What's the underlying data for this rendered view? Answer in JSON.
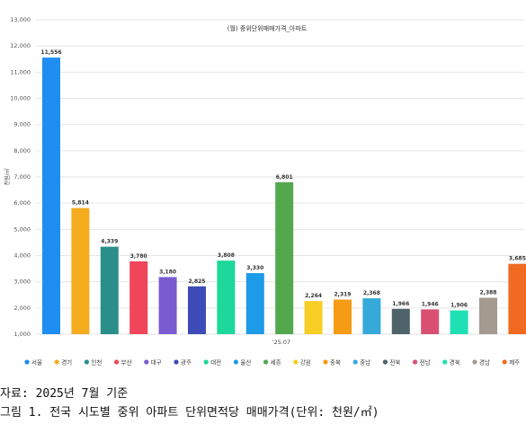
{
  "chart_data": {
    "type": "bar",
    "title": "(월) 중위단위매매가격_아파트",
    "ylabel": "천원/㎡",
    "ylim": [
      1000,
      13000
    ],
    "yticks": [
      1000,
      2000,
      3000,
      4000,
      5000,
      6000,
      7000,
      8000,
      9000,
      10000,
      11000,
      12000,
      13000
    ],
    "ytick_labels": [
      "1,000",
      "2,000",
      "3,000",
      "4,000",
      "5,000",
      "6,000",
      "7,000",
      "8,000",
      "9,000",
      "10,000",
      "11,000",
      "12,000",
      "13,000"
    ],
    "x_category_label": "'25.07",
    "grid": true,
    "legend_position": "bottom",
    "series": [
      {
        "name": "서울",
        "value": 11556,
        "label": "11,556",
        "color": "#1e8ef2"
      },
      {
        "name": "경기",
        "value": 5814,
        "label": "5,814",
        "color": "#f5ab1e"
      },
      {
        "name": "인천",
        "value": 4339,
        "label": "4,339",
        "color": "#2a8f8a"
      },
      {
        "name": "부산",
        "value": 3780,
        "label": "3,780",
        "color": "#f0455a"
      },
      {
        "name": "대구",
        "value": 3180,
        "label": "3,180",
        "color": "#7a5bd0"
      },
      {
        "name": "광주",
        "value": 2825,
        "label": "2,825",
        "color": "#3d4bb8"
      },
      {
        "name": "대전",
        "value": 3808,
        "label": "3,808",
        "color": "#1ed79a"
      },
      {
        "name": "울산",
        "value": 3330,
        "label": "3,330",
        "color": "#1d9ae8"
      },
      {
        "name": "세종",
        "value": 6801,
        "label": "6,801",
        "color": "#53a84e"
      },
      {
        "name": "강원",
        "value": 2264,
        "label": "2,264",
        "color": "#f7cf24"
      },
      {
        "name": "충북",
        "value": 2319,
        "label": "2,319",
        "color": "#f59b14"
      },
      {
        "name": "충남",
        "value": 2368,
        "label": "2,368",
        "color": "#35a9d9"
      },
      {
        "name": "전북",
        "value": 1966,
        "label": "1,966",
        "color": "#4d6369"
      },
      {
        "name": "전남",
        "value": 1946,
        "label": "1,946",
        "color": "#d94f72"
      },
      {
        "name": "경북",
        "value": 1906,
        "label": "1,906",
        "color": "#1ee0b4"
      },
      {
        "name": "경남",
        "value": 2388,
        "label": "2,388",
        "color": "#a49a8f"
      },
      {
        "name": "제주",
        "value": 3685,
        "label": "3,685",
        "color": "#f06a22"
      }
    ]
  },
  "captions": {
    "source": "자료: 2025년 7월 기준",
    "figure": "그림 1. 전국 시도별 중위 아파트 단위면적당 매매가격(단위: 천원/㎡)"
  }
}
